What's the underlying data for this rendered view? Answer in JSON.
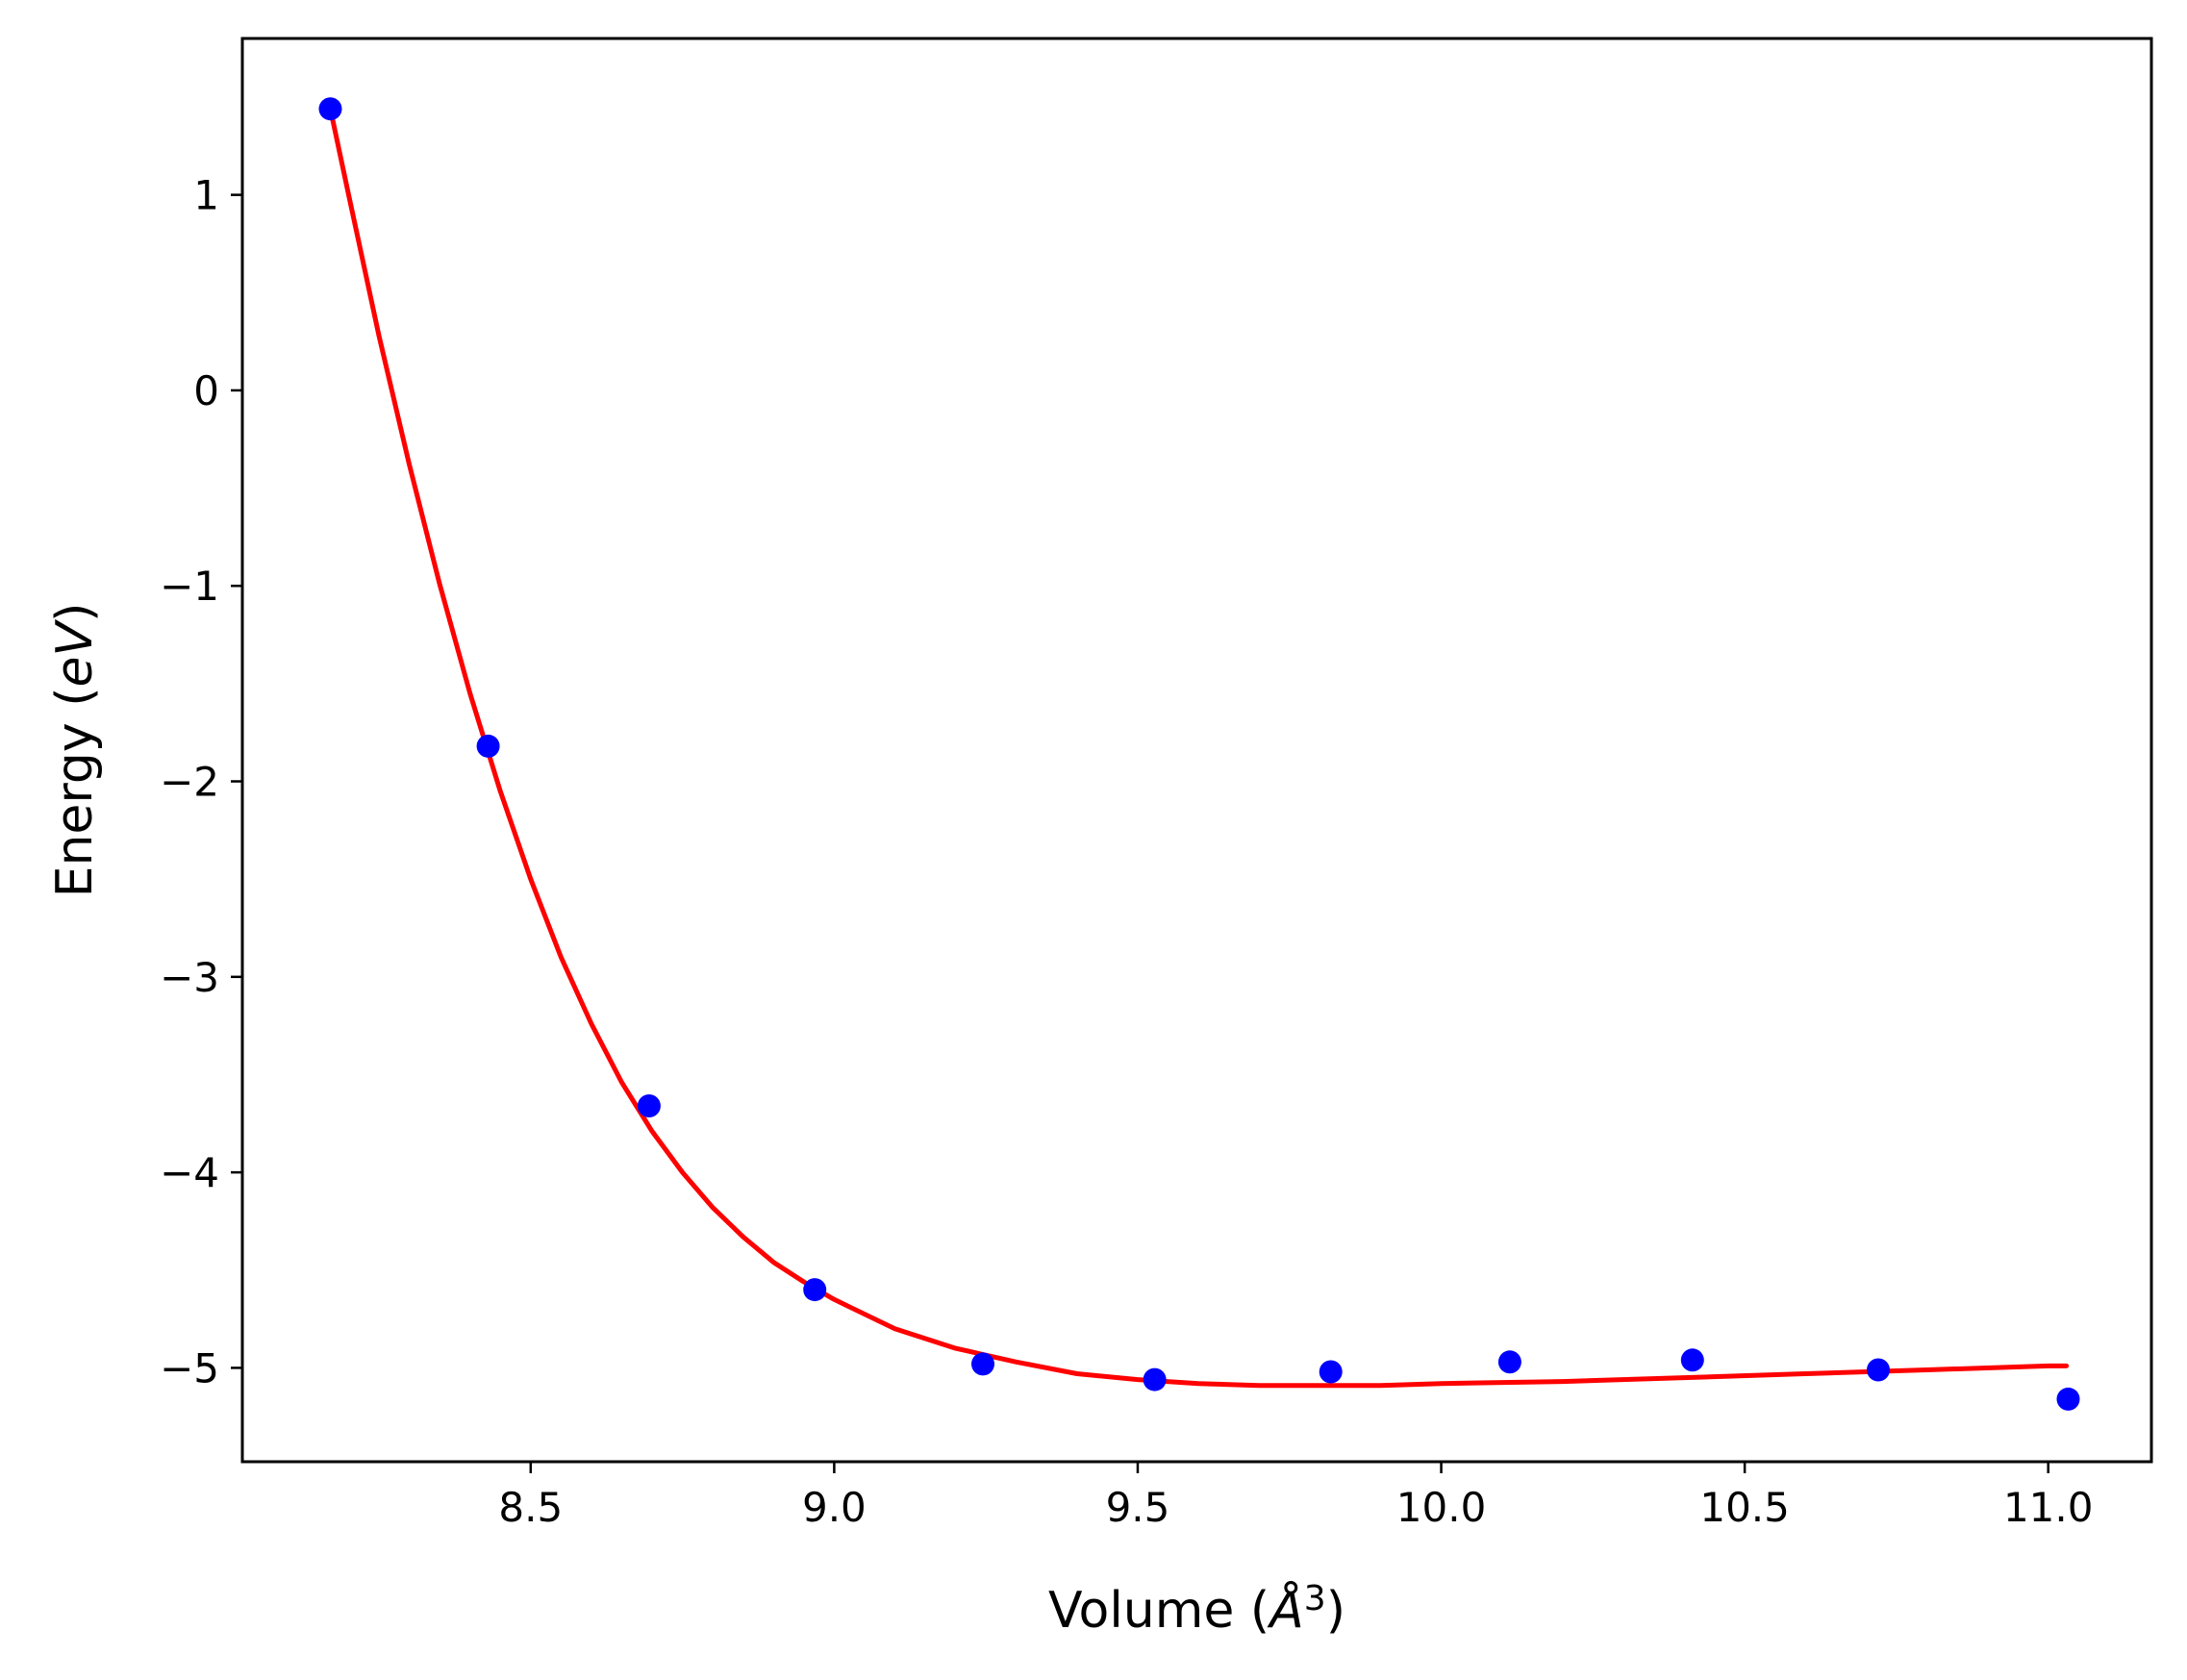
{
  "chart_data": {
    "type": "scatter",
    "xlabel": {
      "prefix": "Volume (",
      "symbol": "Å",
      "sup": "3",
      "suffix": ")"
    },
    "ylabel": {
      "prefix": "Energy (",
      "unit": "eV",
      "suffix": ")"
    },
    "xlim": [
      8.025,
      11.17
    ],
    "ylim": [
      -5.48,
      1.8
    ],
    "x_ticks": [
      {
        "value": 8.5,
        "label": "8.5"
      },
      {
        "value": 9.0,
        "label": "9.0"
      },
      {
        "value": 9.5,
        "label": "9.5"
      },
      {
        "value": 10.0,
        "label": "10.0"
      },
      {
        "value": 10.5,
        "label": "10.5"
      },
      {
        "value": 11.0,
        "label": "11.0"
      }
    ],
    "y_ticks": [
      {
        "value": 1,
        "label": "1"
      },
      {
        "value": 0,
        "label": "0"
      },
      {
        "value": -1,
        "label": "−1"
      },
      {
        "value": -2,
        "label": "−2"
      },
      {
        "value": -3,
        "label": "−3"
      },
      {
        "value": -4,
        "label": "−4"
      },
      {
        "value": -5,
        "label": "−5"
      }
    ],
    "grid": false,
    "legend": "none",
    "series": [
      {
        "kind": "points",
        "color": "#0000ff",
        "marker": "circle",
        "x": [
          8.17,
          8.43,
          8.695,
          8.968,
          9.245,
          9.528,
          9.818,
          10.113,
          10.414,
          10.72,
          11.033
        ],
        "y": [
          1.44,
          -1.82,
          -3.66,
          -4.6,
          -4.98,
          -5.06,
          -5.02,
          -4.97,
          -4.96,
          -5.01,
          -5.16
        ]
      },
      {
        "kind": "fit-line",
        "color": "#ff0000",
        "x": [
          8.17,
          8.2,
          8.25,
          8.3,
          8.35,
          8.4,
          8.45,
          8.5,
          8.55,
          8.6,
          8.65,
          8.7,
          8.75,
          8.8,
          8.85,
          8.9,
          8.95,
          9.0,
          9.1,
          9.2,
          9.3,
          9.4,
          9.5,
          9.6,
          9.7,
          9.8,
          9.9,
          10.0,
          10.2,
          10.4,
          10.6,
          10.8,
          11.0,
          11.03
        ],
        "y": [
          1.44,
          1.0,
          0.28,
          -0.38,
          -0.99,
          -1.55,
          -2.05,
          -2.5,
          -2.9,
          -3.24,
          -3.54,
          -3.79,
          -4.0,
          -4.18,
          -4.33,
          -4.46,
          -4.56,
          -4.65,
          -4.8,
          -4.9,
          -4.97,
          -5.03,
          -5.06,
          -5.08,
          -5.09,
          -5.09,
          -5.09,
          -5.08,
          -5.07,
          -5.05,
          -5.03,
          -5.01,
          -4.99,
          -4.99
        ]
      }
    ]
  }
}
